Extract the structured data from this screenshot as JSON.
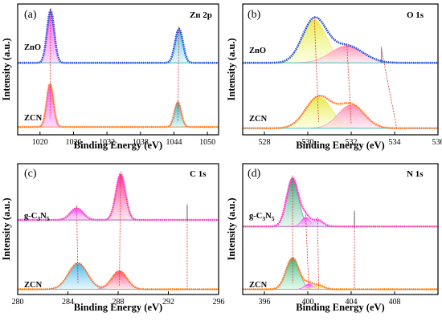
{
  "chart_data": [
    {
      "type": "line",
      "panel": "(a)",
      "title": "Zn 2p",
      "xlabel": "Binding Energy (eV)",
      "ylabel": "Intensity (a.u.)",
      "xlim": [
        1016,
        1052
      ],
      "xticks": [
        1020,
        1026,
        1032,
        1038,
        1044,
        1050
      ],
      "reversed": false,
      "series": [
        {
          "name": "ZnO",
          "baseline": 0.55,
          "background": "#40c0c0",
          "data_color": "#1a3fbf",
          "peaks": [
            {
              "center": 1021.9,
              "height": 0.4,
              "width": 0.65,
              "fill_top": "#ff40ff",
              "fill_bottom": "#ffc0ff"
            },
            {
              "center": 1044.9,
              "height": 0.26,
              "width": 0.7,
              "fill_top": "#40c0e0",
              "fill_bottom": "#d0f4ff"
            }
          ]
        },
        {
          "name": "ZCN",
          "baseline": 0.06,
          "background": "#ff9020",
          "data_color": "#ff8c1a",
          "peaks": [
            {
              "center": 1021.8,
              "height": 0.33,
              "width": 0.6,
              "fill_top": "#ff40ff",
              "fill_bottom": "#ffc0ff"
            },
            {
              "center": 1044.7,
              "height": 0.19,
              "width": 0.6,
              "fill_top": "#20b0c0",
              "fill_bottom": "#c0f0f8"
            }
          ]
        }
      ],
      "reference_lines": [
        [
          1021.9,
          1021.8
        ],
        [
          1044.9,
          1044.7
        ]
      ],
      "series_labels": [
        "ZnO",
        "ZCN"
      ]
    },
    {
      "type": "line",
      "panel": "(b)",
      "title": "O 1s",
      "xlabel": "Binding Energy (eV)",
      "ylabel": "Intensity (a.u.)",
      "xlim": [
        527,
        536
      ],
      "xticks": [
        528,
        530,
        532,
        534,
        536
      ],
      "reversed": false,
      "series": [
        {
          "name": "ZnO",
          "baseline": 0.55,
          "background": "#40c0c0",
          "data_color": "#1a3fbf",
          "peaks": [
            {
              "center": 530.3,
              "height": 0.33,
              "width": 0.55,
              "fill_top": "#e8e840",
              "fill_bottom": "#f8ffd0"
            },
            {
              "center": 531.8,
              "height": 0.13,
              "width": 0.75,
              "fill_top": "#ff8ab0",
              "fill_bottom": "#ffe0ec"
            }
          ]
        },
        {
          "name": "ZCN",
          "baseline": 0.05,
          "background": "#40c0c0",
          "data_color": "#ff8c1a",
          "peaks": [
            {
              "center": 530.5,
              "height": 0.24,
              "width": 0.6,
              "fill_top": "#e8e840",
              "fill_bottom": "#f8ffd0"
            },
            {
              "center": 532.0,
              "height": 0.18,
              "width": 0.6,
              "fill_top": "#ff8ab0",
              "fill_bottom": "#ffe0ec"
            }
          ]
        }
      ],
      "reference_lines": [
        [
          530.3,
          530.5
        ],
        [
          531.8,
          532.0
        ],
        [
          533.4,
          534.1
        ]
      ],
      "series_labels": [
        "ZnO",
        "ZCN"
      ]
    },
    {
      "type": "line",
      "panel": "(c)",
      "title": "C 1s",
      "xlabel": "Binding Energy (eV)",
      "ylabel": "Intensity (a.u.)",
      "xlim": [
        280,
        296
      ],
      "xticks": [
        280,
        284,
        288,
        292,
        296
      ],
      "reversed": false,
      "series": [
        {
          "name": "g-C3N5",
          "baseline": 0.57,
          "background": "#c060c0",
          "data_color": "#ff30ff",
          "peaks": [
            {
              "center": 284.7,
              "height": 0.09,
              "width": 0.5,
              "fill_top": "#ff40ff",
              "fill_bottom": "#ffd0ff"
            },
            {
              "center": 288.2,
              "height": 0.35,
              "width": 0.38,
              "fill_top": "#ff2a8a",
              "fill_bottom": "#ffd0e0"
            }
          ]
        },
        {
          "name": "ZCN",
          "baseline": 0.04,
          "background": "#ff9020",
          "data_color": "#ff8c1a",
          "peaks": [
            {
              "center": 284.8,
              "height": 0.2,
              "width": 0.75,
              "fill_top": "#40b0e0",
              "fill_bottom": "#d0f0ff"
            },
            {
              "center": 288.1,
              "height": 0.14,
              "width": 0.6,
              "fill_top": "#ff4070",
              "fill_bottom": "#ffd8e0"
            }
          ]
        }
      ],
      "reference_lines": [
        [
          284.7,
          284.8
        ],
        [
          288.2,
          288.1
        ],
        [
          293.5,
          293.5
        ]
      ],
      "series_labels": [
        "g-C",
        "ZCN"
      ]
    },
    {
      "type": "line",
      "panel": "(d)",
      "title": "N 1s",
      "xlabel": "Binding Energy (eV)",
      "ylabel": "Intensity (a.u.)",
      "xlim": [
        394,
        412
      ],
      "xticks": [
        396,
        400,
        404,
        408
      ],
      "reversed": false,
      "series": [
        {
          "name": "g-C3N5",
          "baseline": 0.52,
          "background": "#c060c0",
          "data_color": "#ff30ff",
          "peaks": [
            {
              "center": 398.6,
              "height": 0.37,
              "width": 0.55,
              "fill_top": "#30a070",
              "fill_bottom": "#d0f0e0"
            },
            {
              "center": 399.8,
              "height": 0.07,
              "width": 0.4,
              "fill_top": "#ff40ff",
              "fill_bottom": "#ffd0ff"
            },
            {
              "center": 400.9,
              "height": 0.05,
              "width": 0.5,
              "fill_top": "#c0b0e0",
              "fill_bottom": "#f0eafc"
            }
          ]
        },
        {
          "name": "ZCN",
          "baseline": 0.04,
          "background": "#ff9020",
          "data_color": "#ff8c1a",
          "peaks": [
            {
              "center": 398.6,
              "height": 0.24,
              "width": 0.6,
              "fill_top": "#30b070",
              "fill_bottom": "#d0f8e0"
            },
            {
              "center": 400.1,
              "height": 0.04,
              "width": 0.4,
              "fill_top": "#ff40ff",
              "fill_bottom": "#ffd0ff"
            },
            {
              "center": 401.0,
              "height": 0.03,
              "width": 0.5,
              "fill_top": "#e0e040",
              "fill_bottom": "#fcfcd0"
            }
          ]
        }
      ],
      "reference_lines": [
        [
          398.6,
          398.6
        ],
        [
          399.8,
          400.1
        ],
        [
          400.9,
          401.0
        ],
        [
          404.3,
          404.3
        ]
      ],
      "series_labels": [
        "g-C",
        "ZCN"
      ]
    }
  ],
  "labels": {
    "g_c3n5_main": "g-C",
    "g_c3n5_sub1": "3",
    "g_c3n5_n": "N",
    "g_c3n5_sub2": "5"
  }
}
